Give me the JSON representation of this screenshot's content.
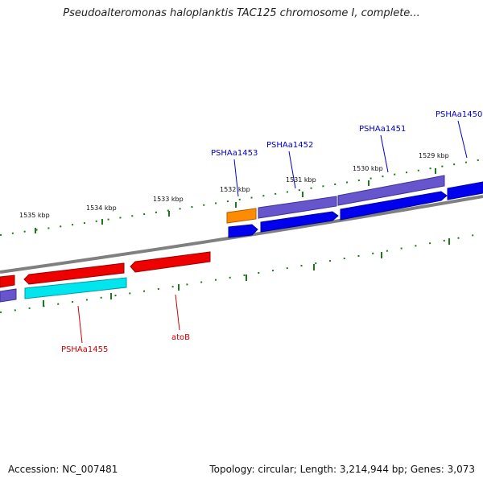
{
  "title": "Pseudoalteromonas haloplanktis TAC125 chromosome I, complete...",
  "footer": {
    "accession": "Accession: NC_007481",
    "summary": "Topology: circular; Length: 3,214,944 bp; Genes: 3,073"
  },
  "scale_labels": [
    "1535 kbp",
    "1534 kbp",
    "1533 kbp",
    "1532 kbp",
    "1531 kbp",
    "1530 kbp",
    "1529 kbp"
  ],
  "gene_labels_forward": [
    "PSHAa1453",
    "PSHAa1452",
    "PSHAa1451",
    "PSHAa1450"
  ],
  "gene_labels_reverse": [
    "PSHAa1455",
    "atoB"
  ],
  "colors": {
    "forward_label": "#0000cc",
    "reverse_label": "#cc0000",
    "backbone": "#808080",
    "tick": "#1a7a1a",
    "blue": "#0000ee",
    "purple": "#6655cc",
    "orange": "#ff8c00",
    "red": "#ee0000",
    "cyan": "#00e5ee"
  }
}
